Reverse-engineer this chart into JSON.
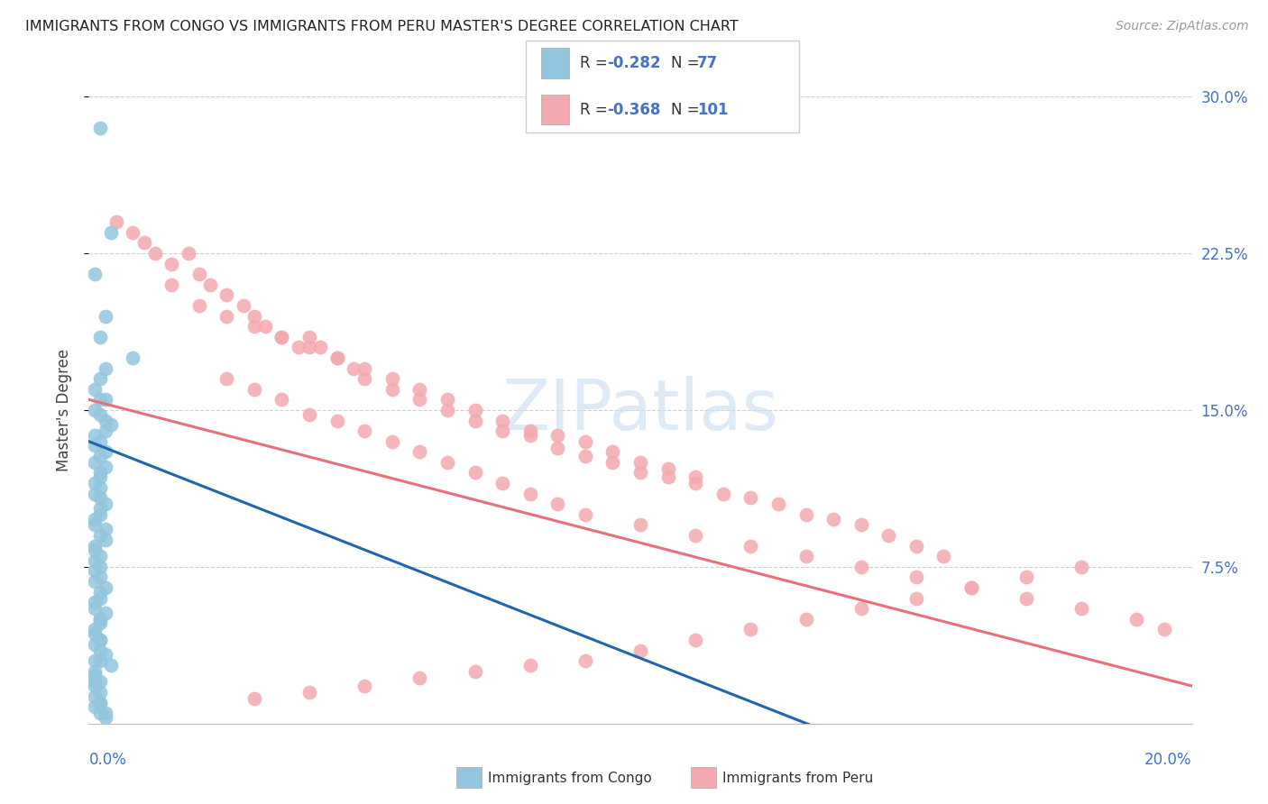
{
  "title": "IMMIGRANTS FROM CONGO VS IMMIGRANTS FROM PERU MASTER'S DEGREE CORRELATION CHART",
  "source": "Source: ZipAtlas.com",
  "ylabel": "Master's Degree",
  "xlim": [
    0.0,
    0.2
  ],
  "ylim": [
    0.0,
    0.3
  ],
  "congo_R": -0.282,
  "congo_N": 77,
  "peru_R": -0.368,
  "peru_N": 101,
  "congo_color": "#92c5de",
  "peru_color": "#f4a9b0",
  "congo_line_color": "#2166ac",
  "peru_line_color": "#e8707a",
  "watermark_color": "#ddeeff",
  "ytick_values": [
    0.075,
    0.15,
    0.225,
    0.3
  ],
  "ytick_labels": [
    "7.5%",
    "15.0%",
    "22.5%",
    "30.0%"
  ],
  "tick_color": "#4472c4",
  "congo_line_x0": 0.0,
  "congo_line_x1": 0.135,
  "congo_line_y0": 0.135,
  "congo_line_y1": -0.005,
  "peru_line_x0": 0.0,
  "peru_line_x1": 0.2,
  "peru_line_y0": 0.155,
  "peru_line_y1": 0.018,
  "congo_scatter_x": [
    0.002,
    0.004,
    0.001,
    0.003,
    0.002,
    0.008,
    0.003,
    0.002,
    0.001,
    0.003,
    0.002,
    0.001,
    0.002,
    0.003,
    0.004,
    0.003,
    0.001,
    0.002,
    0.001,
    0.003,
    0.002,
    0.001,
    0.003,
    0.002,
    0.002,
    0.001,
    0.002,
    0.001,
    0.002,
    0.003,
    0.002,
    0.002,
    0.001,
    0.001,
    0.003,
    0.002,
    0.003,
    0.001,
    0.001,
    0.002,
    0.001,
    0.002,
    0.001,
    0.002,
    0.001,
    0.003,
    0.002,
    0.002,
    0.001,
    0.001,
    0.003,
    0.002,
    0.002,
    0.001,
    0.001,
    0.002,
    0.001,
    0.002,
    0.003,
    0.002,
    0.004,
    0.001,
    0.001,
    0.002,
    0.001,
    0.002,
    0.001,
    0.002,
    0.001,
    0.003,
    0.002,
    0.002,
    0.001,
    0.001,
    0.002,
    0.002,
    0.003
  ],
  "congo_scatter_y": [
    0.285,
    0.235,
    0.215,
    0.195,
    0.185,
    0.175,
    0.17,
    0.165,
    0.16,
    0.155,
    0.155,
    0.15,
    0.148,
    0.145,
    0.143,
    0.14,
    0.138,
    0.135,
    0.133,
    0.13,
    0.128,
    0.125,
    0.123,
    0.12,
    0.118,
    0.115,
    0.113,
    0.11,
    0.108,
    0.105,
    0.103,
    0.1,
    0.098,
    0.095,
    0.093,
    0.09,
    0.088,
    0.085,
    0.083,
    0.08,
    0.078,
    0.075,
    0.073,
    0.07,
    0.068,
    0.065,
    0.063,
    0.06,
    0.058,
    0.055,
    0.053,
    0.05,
    0.048,
    0.045,
    0.043,
    0.04,
    0.038,
    0.035,
    0.033,
    0.03,
    0.028,
    0.025,
    0.023,
    0.02,
    0.018,
    0.015,
    0.013,
    0.01,
    0.008,
    0.005,
    0.05,
    0.04,
    0.03,
    0.02,
    0.01,
    0.005,
    0.003
  ],
  "peru_scatter_x": [
    0.005,
    0.008,
    0.01,
    0.012,
    0.015,
    0.018,
    0.02,
    0.022,
    0.025,
    0.028,
    0.03,
    0.032,
    0.035,
    0.038,
    0.04,
    0.042,
    0.045,
    0.048,
    0.05,
    0.055,
    0.015,
    0.02,
    0.025,
    0.03,
    0.035,
    0.04,
    0.045,
    0.05,
    0.055,
    0.06,
    0.065,
    0.07,
    0.075,
    0.08,
    0.085,
    0.09,
    0.095,
    0.1,
    0.105,
    0.11,
    0.06,
    0.065,
    0.07,
    0.075,
    0.08,
    0.085,
    0.09,
    0.095,
    0.1,
    0.105,
    0.11,
    0.115,
    0.12,
    0.125,
    0.13,
    0.135,
    0.14,
    0.145,
    0.15,
    0.155,
    0.025,
    0.03,
    0.035,
    0.04,
    0.045,
    0.05,
    0.055,
    0.06,
    0.065,
    0.07,
    0.075,
    0.08,
    0.085,
    0.09,
    0.1,
    0.11,
    0.12,
    0.13,
    0.14,
    0.15,
    0.16,
    0.17,
    0.18,
    0.19,
    0.195,
    0.18,
    0.17,
    0.16,
    0.15,
    0.14,
    0.13,
    0.12,
    0.11,
    0.1,
    0.09,
    0.08,
    0.07,
    0.06,
    0.05,
    0.04,
    0.03
  ],
  "peru_scatter_y": [
    0.24,
    0.235,
    0.23,
    0.225,
    0.22,
    0.225,
    0.215,
    0.21,
    0.205,
    0.2,
    0.195,
    0.19,
    0.185,
    0.18,
    0.185,
    0.18,
    0.175,
    0.17,
    0.165,
    0.16,
    0.21,
    0.2,
    0.195,
    0.19,
    0.185,
    0.18,
    0.175,
    0.17,
    0.165,
    0.16,
    0.155,
    0.15,
    0.145,
    0.14,
    0.138,
    0.135,
    0.13,
    0.125,
    0.122,
    0.118,
    0.155,
    0.15,
    0.145,
    0.14,
    0.138,
    0.132,
    0.128,
    0.125,
    0.12,
    0.118,
    0.115,
    0.11,
    0.108,
    0.105,
    0.1,
    0.098,
    0.095,
    0.09,
    0.085,
    0.08,
    0.165,
    0.16,
    0.155,
    0.148,
    0.145,
    0.14,
    0.135,
    0.13,
    0.125,
    0.12,
    0.115,
    0.11,
    0.105,
    0.1,
    0.095,
    0.09,
    0.085,
    0.08,
    0.075,
    0.07,
    0.065,
    0.06,
    0.055,
    0.05,
    0.045,
    0.075,
    0.07,
    0.065,
    0.06,
    0.055,
    0.05,
    0.045,
    0.04,
    0.035,
    0.03,
    0.028,
    0.025,
    0.022,
    0.018,
    0.015,
    0.012
  ]
}
